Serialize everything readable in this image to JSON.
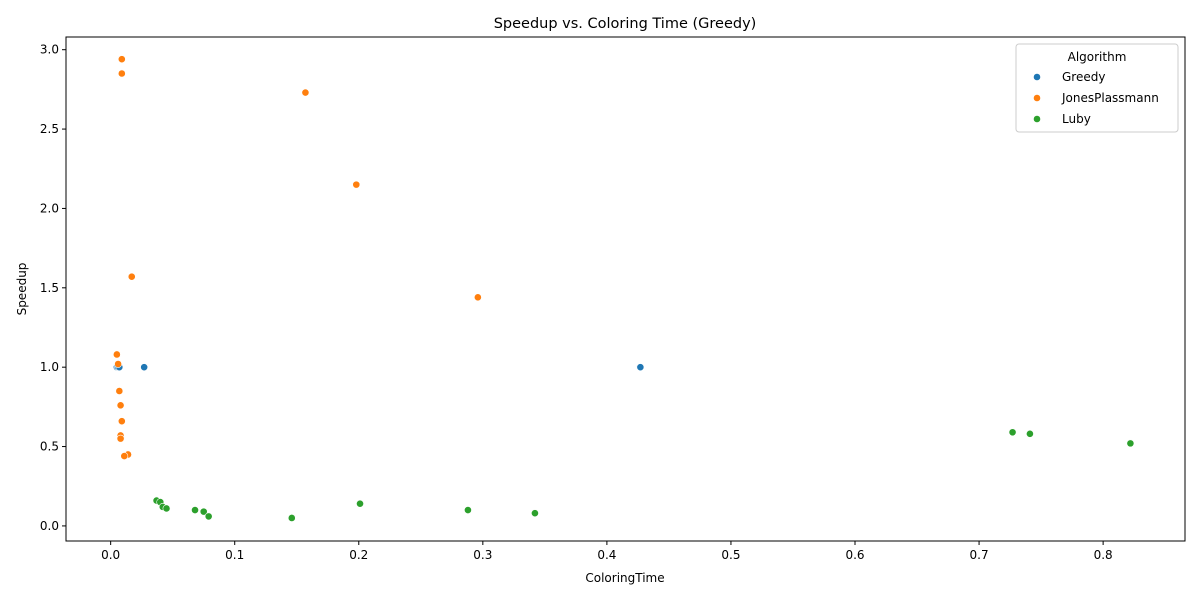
{
  "chart_data": {
    "type": "scatter",
    "title": "Speedup vs. Coloring Time (Greedy)",
    "xlabel": "ColoringTime",
    "ylabel": "Speedup",
    "xlim": [
      -0.036,
      0.866
    ],
    "ylim": [
      -0.095,
      3.08
    ],
    "x_ticks": [
      "0.0",
      "0.1",
      "0.2",
      "0.3",
      "0.4",
      "0.5",
      "0.6",
      "0.7",
      "0.8"
    ],
    "y_ticks": [
      "0.0",
      "0.5",
      "1.0",
      "1.5",
      "2.0",
      "2.5",
      "3.0"
    ],
    "grid": false,
    "legend": {
      "title": "Algorithm",
      "placement": "top-right"
    },
    "series": [
      {
        "name": "Greedy",
        "color": "#1f77b4",
        "points": [
          [
            0.005,
            1.0
          ],
          [
            0.006,
            1.0
          ],
          [
            0.007,
            1.0
          ],
          [
            0.027,
            1.0
          ],
          [
            0.427,
            1.0
          ]
        ]
      },
      {
        "name": "JonesPlassmann",
        "color": "#ff7f0e",
        "points": [
          [
            0.009,
            2.94
          ],
          [
            0.009,
            2.85
          ],
          [
            0.157,
            2.73
          ],
          [
            0.198,
            2.15
          ],
          [
            0.017,
            1.57
          ],
          [
            0.296,
            1.44
          ],
          [
            0.005,
            1.08
          ],
          [
            0.006,
            1.02
          ],
          [
            0.007,
            0.85
          ],
          [
            0.008,
            0.76
          ],
          [
            0.009,
            0.66
          ],
          [
            0.008,
            0.57
          ],
          [
            0.008,
            0.55
          ],
          [
            0.014,
            0.45
          ],
          [
            0.011,
            0.44
          ]
        ]
      },
      {
        "name": "Luby",
        "color": "#2ca02c",
        "points": [
          [
            0.727,
            0.59
          ],
          [
            0.741,
            0.58
          ],
          [
            0.822,
            0.52
          ],
          [
            0.037,
            0.16
          ],
          [
            0.04,
            0.15
          ],
          [
            0.042,
            0.12
          ],
          [
            0.045,
            0.11
          ],
          [
            0.068,
            0.1
          ],
          [
            0.075,
            0.09
          ],
          [
            0.079,
            0.06
          ],
          [
            0.146,
            0.05
          ],
          [
            0.201,
            0.14
          ],
          [
            0.288,
            0.1
          ],
          [
            0.342,
            0.08
          ]
        ]
      }
    ]
  }
}
